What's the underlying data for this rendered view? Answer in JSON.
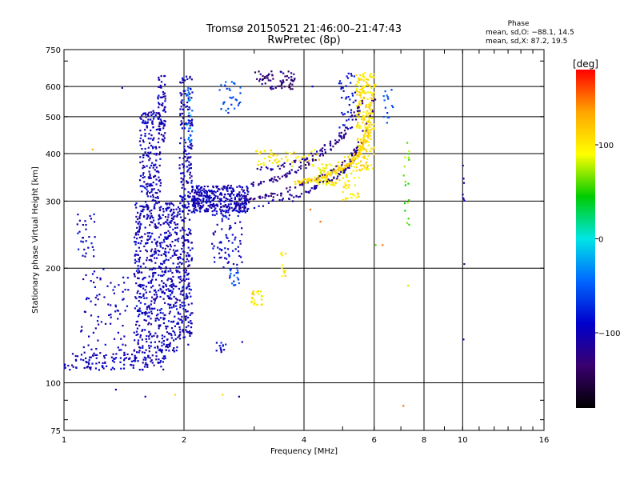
{
  "chart_data": {
    "type": "scatter",
    "title": "Tromsø 20150521 21:46:00–21:47:43",
    "subtitle": "RwPretec (8p)",
    "xlabel": "Frequency [MHz]",
    "ylabel": "Stationary phase Virtual Height [km]",
    "x_scale": "log",
    "y_scale": "log",
    "xlim": [
      1,
      16
    ],
    "ylim": [
      75,
      750
    ],
    "x_ticks": [
      1,
      2,
      4,
      6,
      8,
      10,
      16
    ],
    "x_tick_labels": [
      "1",
      "2",
      "4",
      "6",
      "8",
      "10",
      "16"
    ],
    "y_ticks": [
      75,
      100,
      200,
      300,
      400,
      500,
      600,
      750
    ],
    "y_tick_labels": [
      "75",
      "100",
      "200",
      "300",
      "400",
      "500",
      "600",
      "750"
    ],
    "grid": "on",
    "stats": {
      "heading": "Phase",
      "line_o": "mean, sd,O: −88.1, 14.5",
      "line_x": "mean, sd,X:  87.2, 19.5"
    },
    "colorbar": {
      "label": "[deg]",
      "range": [
        -180,
        180
      ],
      "ticks": [
        100,
        0,
        -100
      ],
      "tick_labels": [
        "100",
        "0",
        "−100"
      ],
      "colors": [
        "#ff0000",
        "#ffa500",
        "#ffff00",
        "#00cc00",
        "#00e5e5",
        "#0066ff",
        "#0000cc",
        "#3a0070",
        "#000000"
      ]
    },
    "series": [
      {
        "type": "band",
        "x": [
          1.0,
          1.8
        ],
        "y": [
          108,
          120
        ],
        "phase": -100,
        "density": 130
      },
      {
        "type": "band",
        "x": [
          1.08,
          1.2
        ],
        "y": [
          210,
          280
        ],
        "phase": -95,
        "density": 30
      },
      {
        "type": "band",
        "x": [
          1.1,
          1.45
        ],
        "y": [
          115,
          200
        ],
        "phase": -100,
        "density": 90
      },
      {
        "type": "band",
        "x": [
          1.5,
          1.95
        ],
        "y": [
          120,
          300
        ],
        "phase": -100,
        "density": 650
      },
      {
        "type": "band",
        "x": [
          1.55,
          1.75
        ],
        "y": [
          300,
          520
        ],
        "phase": -100,
        "density": 180
      },
      {
        "type": "band",
        "x": [
          1.72,
          1.8
        ],
        "y": [
          430,
          640
        ],
        "phase": -105,
        "density": 70
      },
      {
        "type": "band",
        "x": [
          1.95,
          2.1
        ],
        "y": [
          130,
          640
        ],
        "phase": -100,
        "density": 330
      },
      {
        "type": "band",
        "x": [
          2.03,
          2.1
        ],
        "y": [
          420,
          600
        ],
        "phase": -40,
        "density": 25
      },
      {
        "type": "band",
        "x": [
          2.1,
          2.9
        ],
        "y": [
          280,
          330
        ],
        "phase": -100,
        "density": 340
      },
      {
        "type": "band",
        "x": [
          2.35,
          2.8
        ],
        "y": [
          200,
          280
        ],
        "phase": -95,
        "density": 70
      },
      {
        "type": "band",
        "x": [
          2.4,
          2.55
        ],
        "y": [
          120,
          128
        ],
        "phase": -90,
        "density": 12
      },
      {
        "type": "band",
        "x": [
          2.45,
          2.8
        ],
        "y": [
          500,
          620
        ],
        "phase": -60,
        "density": 30
      },
      {
        "type": "band",
        "x": [
          2.6,
          2.75
        ],
        "y": [
          180,
          200
        ],
        "phase": -60,
        "density": 20
      },
      {
        "type": "band",
        "x": [
          2.95,
          3.15
        ],
        "y": [
          160,
          175
        ],
        "phase": 100,
        "density": 25
      },
      {
        "type": "band",
        "x": [
          3.5,
          3.6
        ],
        "y": [
          190,
          220
        ],
        "phase": 100,
        "density": 12
      },
      {
        "type": "band",
        "x": [
          3.0,
          3.8
        ],
        "y": [
          590,
          660
        ],
        "phase": -130,
        "density": 70
      },
      {
        "type": "band",
        "x": [
          3.0,
          4.4
        ],
        "y": [
          370,
          410
        ],
        "phase": 100,
        "density": 60
      },
      {
        "type": "band",
        "x": [
          4.3,
          5.0
        ],
        "y": [
          330,
          380
        ],
        "phase": 100,
        "density": 80
      },
      {
        "type": "band",
        "x": [
          5.0,
          5.5
        ],
        "y": [
          300,
          400
        ],
        "phase": 100,
        "density": 60
      },
      {
        "type": "band",
        "x": [
          5.4,
          6.0
        ],
        "y": [
          360,
          660
        ],
        "phase": 105,
        "density": 200
      },
      {
        "type": "band",
        "x": [
          4.9,
          5.4
        ],
        "y": [
          460,
          650
        ],
        "phase": -90,
        "density": 40
      },
      {
        "type": "band",
        "x": [
          6.3,
          6.7
        ],
        "y": [
          480,
          590
        ],
        "phase": -60,
        "density": 15
      },
      {
        "type": "band",
        "x": [
          7.1,
          7.35
        ],
        "y": [
          260,
          430
        ],
        "phase": 60,
        "density": 18
      },
      {
        "type": "band",
        "x": [
          10.0,
          10.1
        ],
        "y": [
          270,
          400
        ],
        "phase": -110,
        "density": 8
      },
      {
        "type": "curve",
        "x": [
          2.2,
          3.0,
          4.0,
          5.0,
          5.5
        ],
        "y": [
          290,
          290,
          315,
          355,
          410
        ],
        "phase": -110,
        "density": 90
      },
      {
        "type": "curve",
        "x": [
          2.9,
          3.5,
          4.5,
          5.5,
          6.0
        ],
        "y": [
          300,
          315,
          350,
          410,
          560
        ],
        "phase": -125,
        "density": 80
      },
      {
        "type": "curve",
        "x": [
          2.9,
          3.5,
          4.2,
          5.0,
          5.7
        ],
        "y": [
          330,
          345,
          380,
          440,
          560
        ],
        "phase": -120,
        "density": 90
      },
      {
        "type": "curve",
        "x": [
          3.0,
          3.5,
          4.2,
          5.0
        ],
        "y": [
          360,
          370,
          395,
          450
        ],
        "phase": -115,
        "density": 45
      },
      {
        "type": "curve",
        "x": [
          3.8,
          4.5,
          5.3,
          5.7,
          6.0
        ],
        "y": [
          335,
          345,
          380,
          430,
          620
        ],
        "phase": 110,
        "density": 150
      },
      {
        "type": "points",
        "pts": [
          [
            1.35,
            96,
            -100
          ],
          [
            1.6,
            92,
            -110
          ],
          [
            1.9,
            93,
            110
          ],
          [
            2.5,
            93,
            110
          ],
          [
            2.75,
            92,
            -110
          ],
          [
            2.05,
            126,
            -100
          ],
          [
            2.8,
            128,
            -100
          ],
          [
            7.1,
            87,
            150
          ],
          [
            1.18,
            410,
            130
          ],
          [
            1.4,
            595,
            -120
          ],
          [
            4.2,
            600,
            -90
          ],
          [
            6.3,
            230,
            150
          ],
          [
            7.3,
            180,
            80
          ],
          [
            10.05,
            130,
            -100
          ],
          [
            10.1,
            205,
            -130
          ],
          [
            4.4,
            265,
            150
          ],
          [
            3.75,
            300,
            -110
          ],
          [
            4.15,
            285,
            150
          ],
          [
            6.05,
            230,
            60
          ]
        ]
      }
    ]
  }
}
